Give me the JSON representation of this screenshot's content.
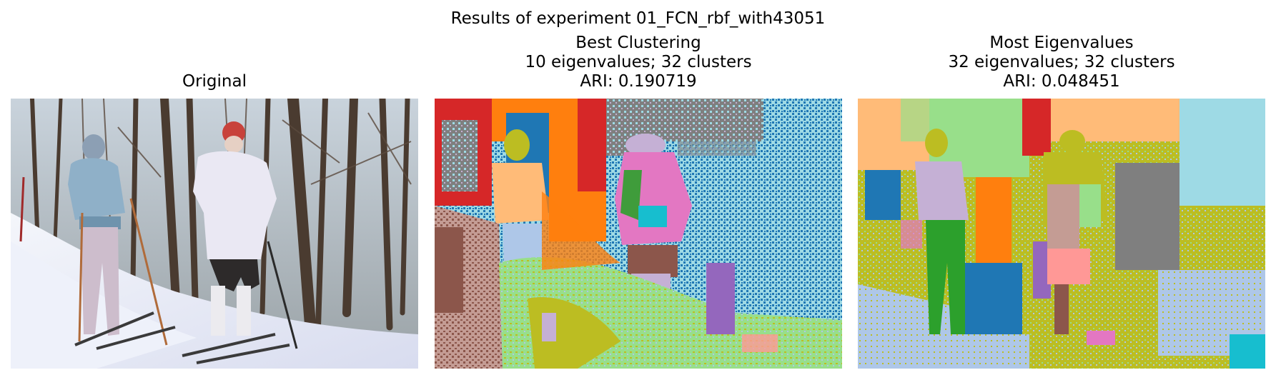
{
  "figure": {
    "suptitle": "Results of experiment 01_FCN_rbf_with43051"
  },
  "panels": [
    {
      "title_lines": [
        "Original"
      ]
    },
    {
      "title_lines": [
        "Best Clustering",
        "10 eigenvalues; 32 clusters",
        "ARI: 0.190719"
      ]
    },
    {
      "title_lines": [
        "Most Eigenvalues",
        "32 eigenvalues; 32 clusters",
        "ARI: 0.048451"
      ]
    }
  ],
  "palette": {
    "tab_red": "#d62728",
    "tab_blue": "#1f77b4",
    "tab_orange": "#ff7f0e",
    "tab_gray": "#7f7f7f",
    "tab_light_blue": "#9edae5",
    "tab_pink": "#e377c2",
    "tab_green": "#2ca02c",
    "tab_olive": "#bcbd22",
    "tab_peach": "#ffbb78",
    "tab_brown": "#8c564b",
    "tab_light_green": "#98df8a",
    "tab_lavender": "#c5b0d5",
    "tab_purple": "#9467bd",
    "tab_light_steel": "#aec7e8",
    "tab_cyan": "#17becf",
    "tab_salmon": "#ff9896"
  }
}
